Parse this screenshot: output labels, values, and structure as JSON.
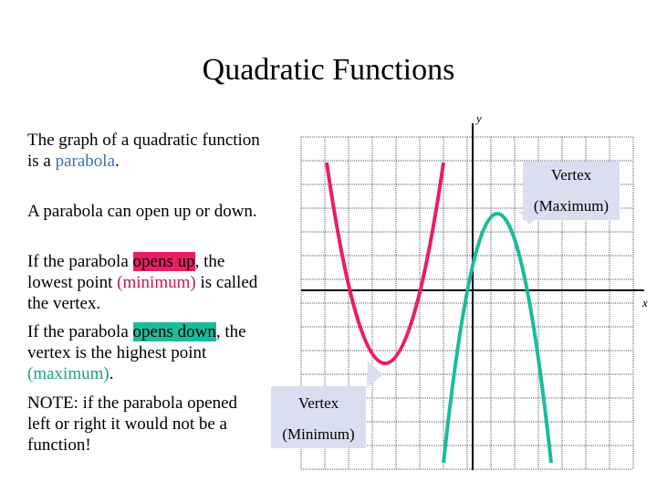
{
  "title": "Quadratic Functions",
  "intro": {
    "line1": "The graph of a quadratic function",
    "line2_prefix": "is a ",
    "line2_term": "parabola",
    "line2_suffix": "."
  },
  "open_statement": "A parabola can open up or down.",
  "opens_up": {
    "line1_prefix": "If the parabola ",
    "line1_term": "opens up",
    "line1_suffix": ", the",
    "line2_prefix": "lowest point ",
    "line2_term": "(minimum)",
    "line2_suffix": " is called",
    "line3": "the vertex."
  },
  "opens_down": {
    "line1_prefix": "If the parabola ",
    "line1_term": "opens down",
    "line1_suffix": ", the",
    "line2": "vertex is the highest point",
    "line3_term": "(maximum)",
    "line3_suffix": "."
  },
  "note": {
    "line1": "NOTE:  if the parabola opened",
    "line2": "left or right it would not be a",
    "line3": "function!"
  },
  "graph": {
    "y_axis_label": "y",
    "x_axis_label": "x",
    "colors": {
      "up_parabola": "#e91e63",
      "down_parabola": "#1abc9c",
      "callout_bg": "#d9dff0"
    }
  },
  "callouts": {
    "max_line1": "Vertex",
    "max_line2": "(Maximum)",
    "min_line1": "Vertex",
    "min_line2": "(Minimum)"
  }
}
